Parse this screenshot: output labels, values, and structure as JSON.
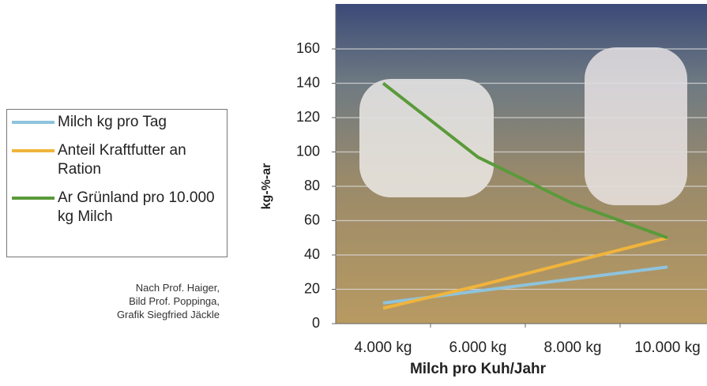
{
  "chart_data": {
    "type": "line",
    "x_label": "Milch pro Kuh/Jahr",
    "y_label": "kg-%-ar",
    "categories": [
      "4.000 kg",
      "6.000 kg",
      "8.000 kg",
      "10.000 kg"
    ],
    "series": [
      {
        "name": "Milch kg pro Tag",
        "color": "#8ec3dc",
        "values": [
          12,
          19,
          26,
          33
        ]
      },
      {
        "name": "Anteil Kraftfutter an Ration",
        "color": "#f0b43c",
        "values": [
          9,
          22,
          36,
          50
        ]
      },
      {
        "name": "Ar Grünland pro 10.000 kg Milch",
        "color": "#5a9a3a",
        "values": [
          140,
          97,
          70,
          50
        ]
      }
    ],
    "ylim": [
      0,
      160
    ],
    "yticks": [
      0,
      20,
      40,
      60,
      80,
      100,
      120,
      140,
      160
    ],
    "grid": true,
    "annotations": [
      "Nach Prof. Haiger,",
      "Bild Prof. Poppinga,",
      "Grafik Siegfried Jäckle"
    ]
  }
}
